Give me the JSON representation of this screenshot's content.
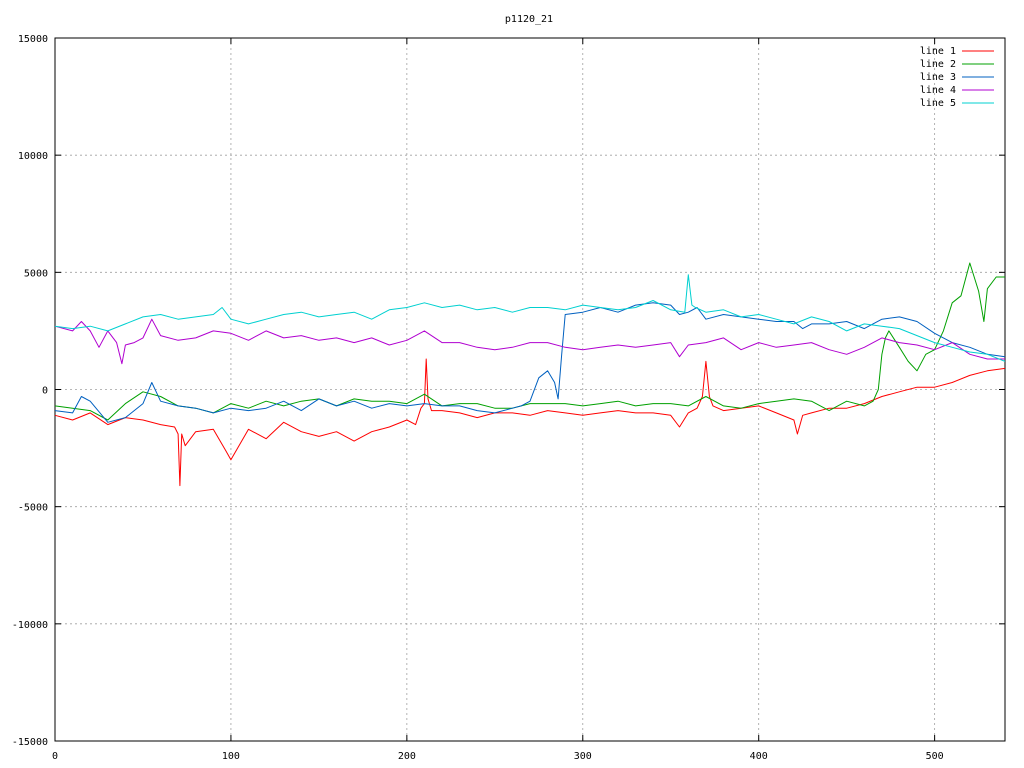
{
  "chart_data": {
    "type": "line",
    "title": "p1120_21",
    "xlabel": "",
    "ylabel": "",
    "xlim": [
      0,
      540
    ],
    "ylim": [
      -15000,
      15000
    ],
    "x_ticks": [
      0,
      100,
      200,
      300,
      400,
      500
    ],
    "y_ticks": [
      -15000,
      -10000,
      -5000,
      0,
      5000,
      10000,
      15000
    ],
    "grid": true,
    "legend_position": "top-right",
    "series": [
      {
        "name": "line 1",
        "color": "#ff0000",
        "x": [
          0,
          10,
          20,
          30,
          40,
          50,
          60,
          68,
          70,
          71,
          72,
          74,
          80,
          90,
          97,
          100,
          110,
          120,
          130,
          140,
          150,
          160,
          170,
          180,
          190,
          200,
          205,
          208,
          210,
          211,
          212,
          214,
          220,
          230,
          240,
          250,
          260,
          270,
          280,
          290,
          300,
          310,
          320,
          330,
          340,
          350,
          355,
          360,
          365,
          368,
          370,
          372,
          374,
          380,
          390,
          400,
          410,
          420,
          422,
          425,
          430,
          440,
          450,
          460,
          470,
          480,
          490,
          500,
          510,
          520,
          530,
          540
        ],
        "values": [
          -1100,
          -1300,
          -1000,
          -1500,
          -1200,
          -1300,
          -1500,
          -1600,
          -1900,
          -4100,
          -1900,
          -2400,
          -1800,
          -1700,
          -2600,
          -3000,
          -1700,
          -2100,
          -1400,
          -1800,
          -2000,
          -1800,
          -2200,
          -1800,
          -1600,
          -1300,
          -1500,
          -800,
          -600,
          1300,
          -400,
          -900,
          -900,
          -1000,
          -1200,
          -1000,
          -1000,
          -1100,
          -900,
          -1000,
          -1100,
          -1000,
          -900,
          -1000,
          -1000,
          -1100,
          -1600,
          -1000,
          -800,
          -300,
          1200,
          -300,
          -700,
          -900,
          -800,
          -700,
          -1000,
          -1300,
          -1900,
          -1100,
          -1000,
          -800,
          -800,
          -600,
          -300,
          -100,
          100,
          100,
          300,
          600,
          800,
          900
        ]
      },
      {
        "name": "line 2",
        "color": "#00a000",
        "x": [
          0,
          10,
          20,
          30,
          40,
          50,
          60,
          70,
          80,
          90,
          100,
          110,
          120,
          130,
          140,
          150,
          160,
          170,
          180,
          190,
          200,
          210,
          220,
          230,
          240,
          250,
          260,
          270,
          280,
          290,
          300,
          310,
          320,
          330,
          340,
          350,
          360,
          370,
          380,
          390,
          400,
          410,
          420,
          430,
          440,
          450,
          460,
          465,
          468,
          470,
          472,
          474,
          480,
          485,
          490,
          495,
          500,
          505,
          510,
          515,
          520,
          525,
          528,
          530,
          535,
          540
        ],
        "values": [
          -700,
          -800,
          -900,
          -1300,
          -600,
          -100,
          -300,
          -700,
          -800,
          -1000,
          -600,
          -800,
          -500,
          -700,
          -500,
          -400,
          -700,
          -400,
          -500,
          -500,
          -600,
          -200,
          -700,
          -600,
          -600,
          -800,
          -800,
          -600,
          -600,
          -600,
          -700,
          -600,
          -500,
          -700,
          -600,
          -600,
          -700,
          -300,
          -700,
          -800,
          -600,
          -500,
          -400,
          -500,
          -900,
          -500,
          -700,
          -500,
          0,
          1500,
          2200,
          2500,
          1800,
          1200,
          800,
          1500,
          1700,
          2500,
          3700,
          4000,
          5400,
          4200,
          2900,
          4300,
          4800,
          4800
        ]
      },
      {
        "name": "line 3",
        "color": "#0060c0",
        "x": [
          0,
          10,
          15,
          20,
          30,
          40,
          50,
          55,
          60,
          70,
          80,
          90,
          100,
          110,
          120,
          130,
          140,
          150,
          160,
          170,
          180,
          190,
          200,
          210,
          220,
          230,
          240,
          250,
          260,
          265,
          270,
          275,
          280,
          284,
          286,
          288,
          290,
          300,
          310,
          320,
          330,
          340,
          350,
          355,
          360,
          365,
          370,
          380,
          390,
          400,
          410,
          420,
          425,
          430,
          440,
          450,
          460,
          470,
          480,
          490,
          500,
          510,
          520,
          530,
          540
        ],
        "values": [
          -900,
          -1000,
          -300,
          -500,
          -1400,
          -1200,
          -600,
          300,
          -500,
          -700,
          -800,
          -1000,
          -800,
          -900,
          -800,
          -500,
          -900,
          -400,
          -700,
          -500,
          -800,
          -600,
          -700,
          -600,
          -700,
          -700,
          -900,
          -1000,
          -800,
          -700,
          -500,
          500,
          800,
          300,
          -400,
          1500,
          3200,
          3300,
          3500,
          3300,
          3600,
          3700,
          3600,
          3200,
          3300,
          3500,
          3000,
          3200,
          3100,
          3000,
          2900,
          2900,
          2600,
          2800,
          2800,
          2900,
          2600,
          3000,
          3100,
          2900,
          2400,
          2000,
          1800,
          1500,
          1400
        ]
      },
      {
        "name": "line 4",
        "color": "#b000d0",
        "x": [
          0,
          10,
          15,
          20,
          25,
          30,
          35,
          38,
          40,
          45,
          50,
          55,
          60,
          70,
          80,
          90,
          100,
          110,
          120,
          130,
          140,
          150,
          160,
          170,
          180,
          190,
          200,
          210,
          220,
          230,
          240,
          250,
          260,
          270,
          280,
          290,
          300,
          310,
          320,
          330,
          340,
          350,
          355,
          360,
          370,
          380,
          390,
          400,
          410,
          420,
          430,
          440,
          450,
          460,
          470,
          480,
          490,
          500,
          510,
          520,
          530,
          540
        ],
        "values": [
          2700,
          2500,
          2900,
          2500,
          1800,
          2500,
          2000,
          1100,
          1900,
          2000,
          2200,
          3000,
          2300,
          2100,
          2200,
          2500,
          2400,
          2100,
          2500,
          2200,
          2300,
          2100,
          2200,
          2000,
          2200,
          1900,
          2100,
          2500,
          2000,
          2000,
          1800,
          1700,
          1800,
          2000,
          2000,
          1800,
          1700,
          1800,
          1900,
          1800,
          1900,
          2000,
          1400,
          1900,
          2000,
          2200,
          1700,
          2000,
          1800,
          1900,
          2000,
          1700,
          1500,
          1800,
          2200,
          2000,
          1900,
          1700,
          2000,
          1500,
          1300,
          1300
        ]
      },
      {
        "name": "line 5",
        "color": "#00d0d0",
        "x": [
          0,
          10,
          20,
          30,
          40,
          50,
          60,
          70,
          80,
          90,
          95,
          100,
          110,
          120,
          130,
          140,
          150,
          160,
          170,
          180,
          190,
          200,
          210,
          220,
          230,
          240,
          250,
          260,
          270,
          280,
          290,
          300,
          310,
          320,
          330,
          340,
          350,
          358,
          360,
          362,
          364,
          370,
          380,
          390,
          400,
          410,
          420,
          430,
          440,
          450,
          460,
          470,
          480,
          490,
          500,
          510,
          520,
          530,
          540
        ],
        "values": [
          2700,
          2600,
          2700,
          2500,
          2800,
          3100,
          3200,
          3000,
          3100,
          3200,
          3500,
          3000,
          2800,
          3000,
          3200,
          3300,
          3100,
          3200,
          3300,
          3000,
          3400,
          3500,
          3700,
          3500,
          3600,
          3400,
          3500,
          3300,
          3500,
          3500,
          3400,
          3600,
          3500,
          3400,
          3500,
          3800,
          3400,
          3300,
          4900,
          3600,
          3500,
          3300,
          3400,
          3100,
          3200,
          3000,
          2800,
          3100,
          2900,
          2500,
          2800,
          2700,
          2600,
          2300,
          2000,
          1800,
          1600,
          1500,
          1200
        ]
      }
    ]
  }
}
